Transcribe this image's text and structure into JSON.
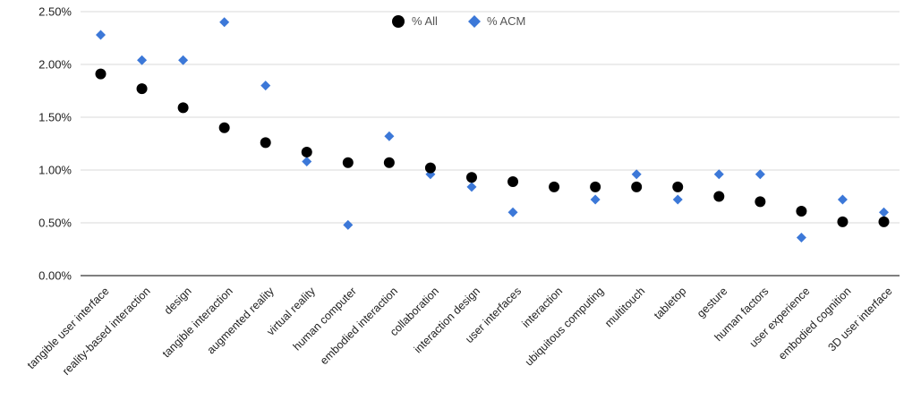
{
  "chart_data": {
    "type": "scatter",
    "categories": [
      "tangible user interface",
      "reality-based interaction",
      "design",
      "tangible interaction",
      "augmented reality",
      "virtual reality",
      "human computer",
      "embodied interaction",
      "collaboration",
      "interaction design",
      "user interfaces",
      "interaction",
      "ubiquitous computing",
      "multitouch",
      "tabletop",
      "gesture",
      "human factors",
      "user experience",
      "embodied cognition",
      "3D user interface"
    ],
    "series": [
      {
        "name": "% All",
        "marker": "circle",
        "color": "#000000",
        "values": [
          1.91,
          1.77,
          1.59,
          1.4,
          1.26,
          1.17,
          1.07,
          1.07,
          1.02,
          0.93,
          0.89,
          0.84,
          0.84,
          0.84,
          0.84,
          0.75,
          0.7,
          0.61,
          0.51,
          0.51
        ]
      },
      {
        "name": "% ACM",
        "marker": "diamond",
        "color": "#3c78d8",
        "values": [
          2.28,
          2.04,
          2.04,
          2.4,
          1.8,
          1.08,
          0.48,
          1.32,
          0.96,
          0.84,
          0.6,
          0.84,
          0.72,
          0.96,
          0.72,
          0.96,
          0.96,
          0.36,
          0.72,
          0.6
        ]
      }
    ],
    "yticks": [
      "0.00%",
      "0.50%",
      "1.00%",
      "1.50%",
      "2.00%",
      "2.50%"
    ],
    "ylim": [
      0,
      2.5
    ],
    "y_unit": "%",
    "grid": true,
    "legend_position": "top"
  }
}
